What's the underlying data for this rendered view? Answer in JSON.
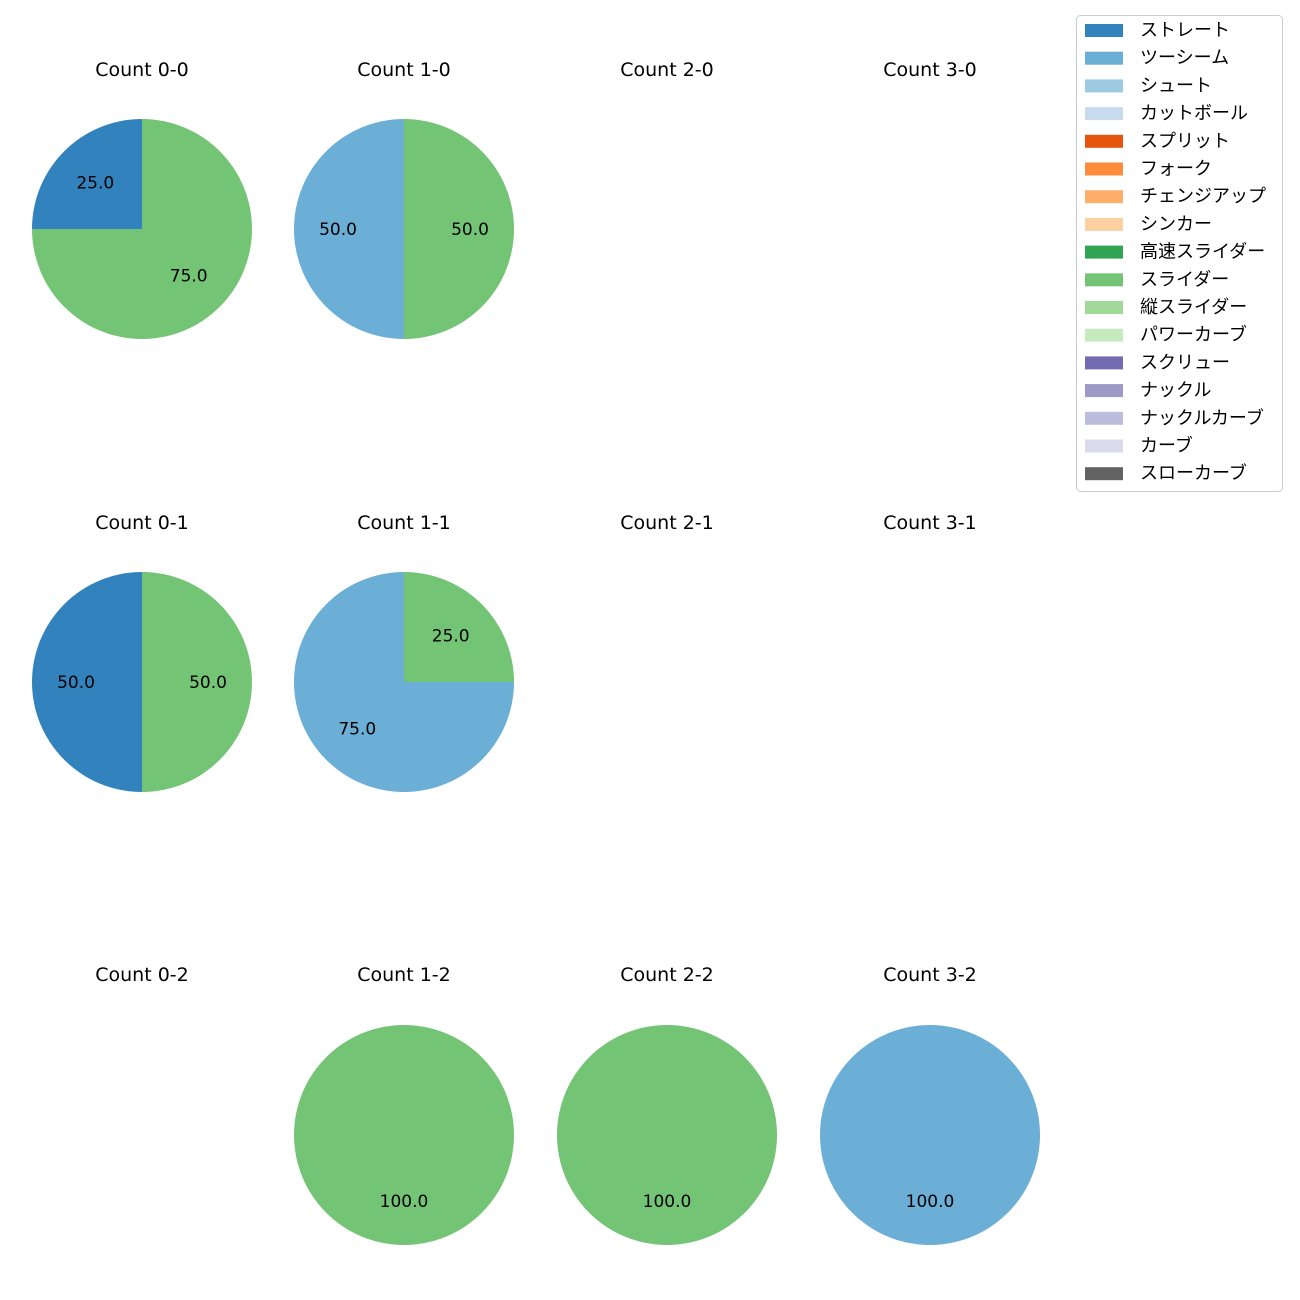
{
  "chart_data": {
    "type": "pie",
    "start_angle": "90deg, counterclockwise",
    "legend": {
      "placement": "top-right",
      "entries": [
        {
          "name": "ストレート",
          "color": "#3182bd"
        },
        {
          "name": "ツーシーム",
          "color": "#6baed6"
        },
        {
          "name": "シュート",
          "color": "#9ecae1"
        },
        {
          "name": "カットボール",
          "color": "#c6dbef"
        },
        {
          "name": "スプリット",
          "color": "#e6550d"
        },
        {
          "name": "フォーク",
          "color": "#fd8d3c"
        },
        {
          "name": "チェンジアップ",
          "color": "#fdae6b"
        },
        {
          "name": "シンカー",
          "color": "#fdd0a2"
        },
        {
          "name": "高速スライダー",
          "color": "#31a354"
        },
        {
          "name": "スライダー",
          "color": "#74c476"
        },
        {
          "name": "縦スライダー",
          "color": "#a1d99b"
        },
        {
          "name": "パワーカーブ",
          "color": "#c7e9c0"
        },
        {
          "name": "スクリュー",
          "color": "#756bb1"
        },
        {
          "name": "ナックル",
          "color": "#9e9ac8"
        },
        {
          "name": "ナックルカーブ",
          "color": "#bcbddc"
        },
        {
          "name": "カーブ",
          "color": "#dadaeb"
        },
        {
          "name": "スローカーブ",
          "color": "#636363"
        }
      ]
    },
    "panels": [
      {
        "title": "Count 0-0",
        "slices": [
          {
            "pitch": "ストレート",
            "value": 25.0,
            "label": "25.0"
          },
          {
            "pitch": "スライダー",
            "value": 75.0,
            "label": "75.0"
          }
        ]
      },
      {
        "title": "Count 1-0",
        "slices": [
          {
            "pitch": "ツーシーム",
            "value": 50.0,
            "label": "50.0"
          },
          {
            "pitch": "スライダー",
            "value": 50.0,
            "label": "50.0"
          }
        ]
      },
      {
        "title": "Count 2-0",
        "slices": []
      },
      {
        "title": "Count 3-0",
        "slices": []
      },
      {
        "title": "Count 0-1",
        "slices": [
          {
            "pitch": "ストレート",
            "value": 50.0,
            "label": "50.0"
          },
          {
            "pitch": "スライダー",
            "value": 50.0,
            "label": "50.0"
          }
        ]
      },
      {
        "title": "Count 1-1",
        "slices": [
          {
            "pitch": "ツーシーム",
            "value": 75.0,
            "label": "75.0"
          },
          {
            "pitch": "スライダー",
            "value": 25.0,
            "label": "25.0"
          }
        ]
      },
      {
        "title": "Count 2-1",
        "slices": []
      },
      {
        "title": "Count 3-1",
        "slices": []
      },
      {
        "title": "Count 0-2",
        "slices": []
      },
      {
        "title": "Count 1-2",
        "slices": [
          {
            "pitch": "スライダー",
            "value": 100.0,
            "label": "100.0"
          }
        ]
      },
      {
        "title": "Count 2-2",
        "slices": [
          {
            "pitch": "スライダー",
            "value": 100.0,
            "label": "100.0"
          }
        ]
      },
      {
        "title": "Count 3-2",
        "slices": [
          {
            "pitch": "ツーシーム",
            "value": 100.0,
            "label": "100.0"
          }
        ]
      }
    ]
  }
}
